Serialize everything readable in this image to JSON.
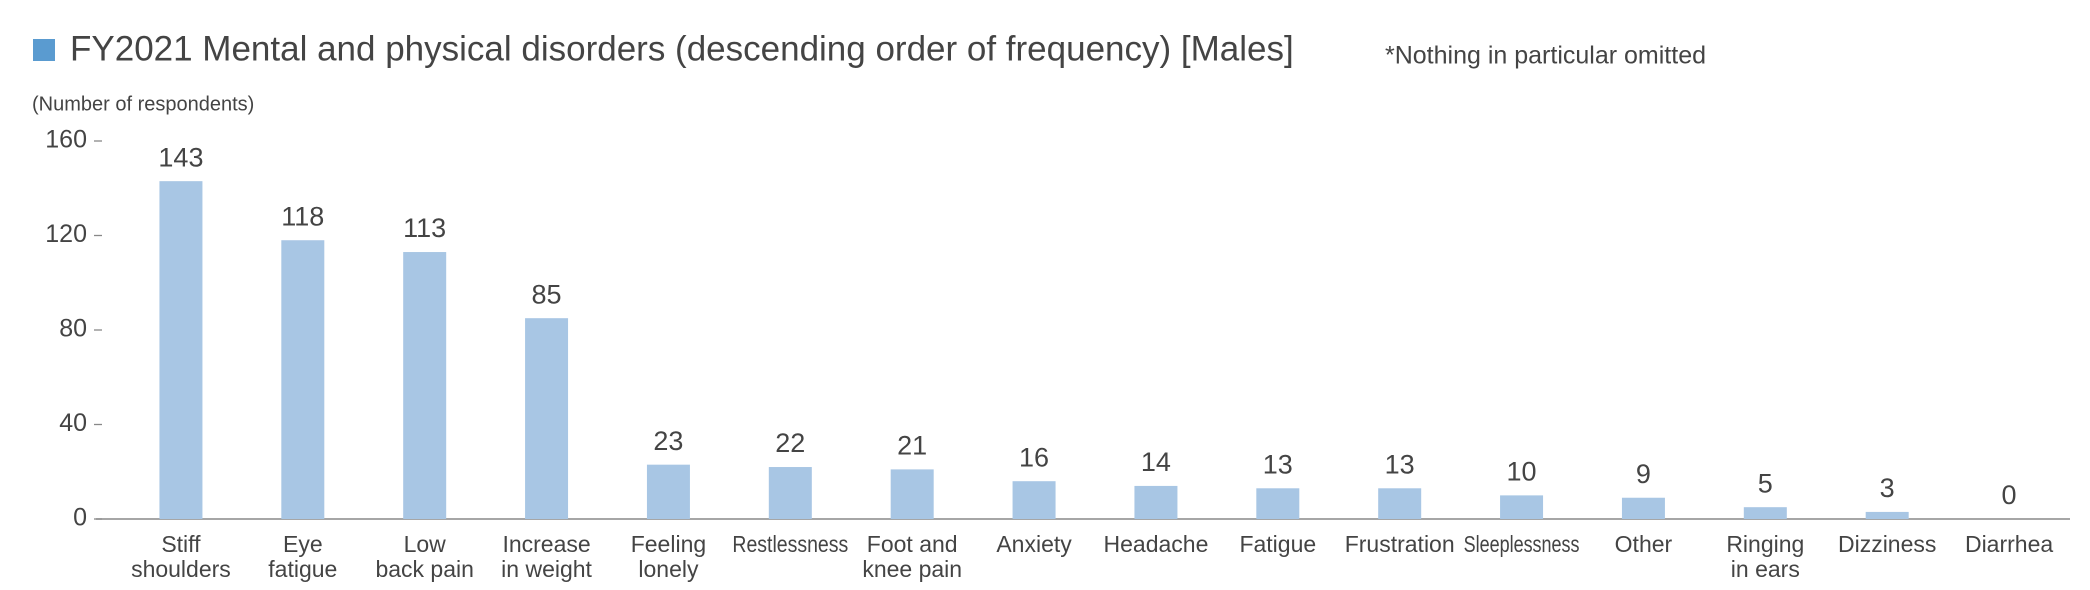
{
  "chart_data": {
    "type": "bar",
    "title": "FY2021 Mental and physical disorders (descending order of frequency) [Males]",
    "note": "*Nothing in particular omitted",
    "y_label": "(Number of respondents)",
    "categories": [
      [
        "Stiff",
        "shoulders"
      ],
      [
        "Eye",
        "fatigue"
      ],
      [
        "Low",
        "back pain"
      ],
      [
        "Increase",
        "in weight"
      ],
      [
        "Feeling",
        "lonely"
      ],
      [
        "Restlessness"
      ],
      [
        "Foot and",
        "knee pain"
      ],
      [
        "Anxiety"
      ],
      [
        "Headache"
      ],
      [
        "Fatigue"
      ],
      [
        "Frustration"
      ],
      [
        "Sleeplessness"
      ],
      [
        "Other"
      ],
      [
        "Ringing",
        "in ears"
      ],
      [
        "Dizziness"
      ],
      [
        "Diarrhea"
      ]
    ],
    "values": [
      143,
      118,
      113,
      85,
      23,
      22,
      21,
      16,
      14,
      13,
      13,
      10,
      9,
      5,
      3,
      0
    ],
    "color": "#a8c6e4",
    "legend_color": "#5a9bd0",
    "ylim": [
      0,
      160
    ],
    "yticks": [
      0,
      40,
      80,
      120,
      160
    ]
  }
}
